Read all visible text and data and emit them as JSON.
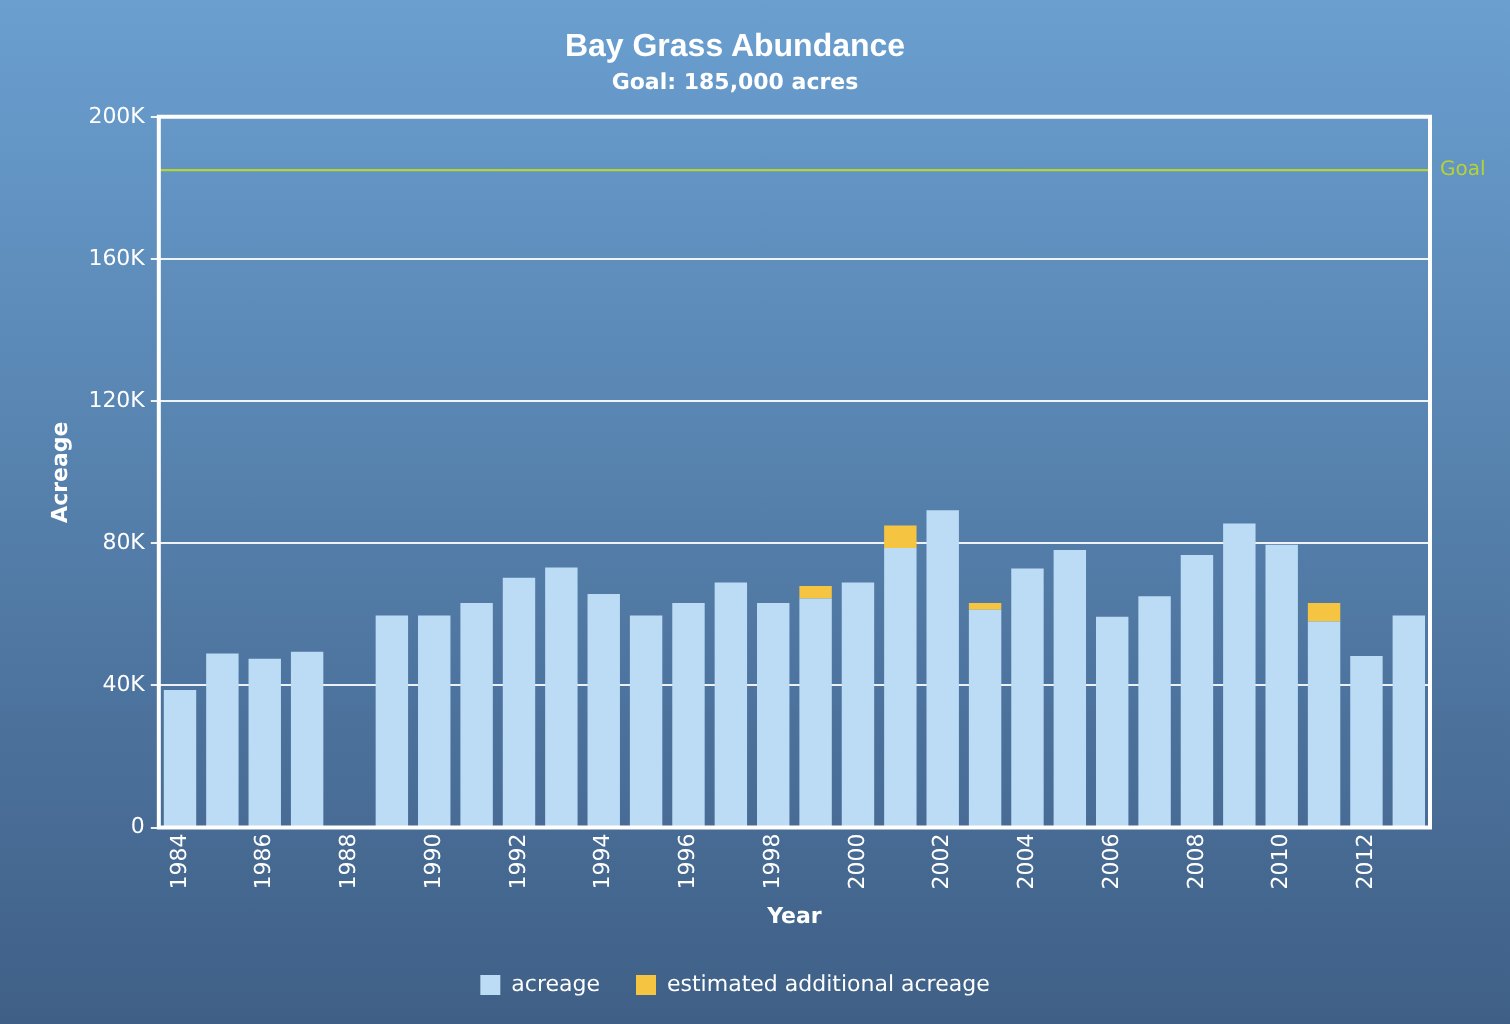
{
  "chart_data": {
    "type": "bar",
    "title": "Bay Grass Abundance",
    "subtitle": "Goal: 185,000 acres",
    "xlabel": "Year",
    "ylabel": "Acreage",
    "categories": [
      "1984",
      null,
      "1986",
      null,
      "1988",
      null,
      "1990",
      null,
      "1992",
      null,
      "1994",
      null,
      "1996",
      null,
      "1998",
      null,
      "2000",
      null,
      "2002",
      null,
      "2004",
      null,
      "2006",
      null,
      "2008",
      null,
      "2010",
      null,
      "2012",
      null
    ],
    "stacked": true,
    "series": [
      {
        "name": "acreage",
        "color": "#bcdcf6",
        "values": [
          38700,
          49000,
          47500,
          49500,
          0,
          59700,
          59700,
          63200,
          70300,
          73200,
          65700,
          59700,
          63200,
          69000,
          63200,
          64500,
          69000,
          78700,
          89300,
          61300,
          72900,
          78100,
          59300,
          65100,
          76700,
          85600,
          79600,
          58000,
          48300,
          59700
        ]
      },
      {
        "name": "estimated additional acreage",
        "color": "#f5c542",
        "values": [
          null,
          null,
          null,
          null,
          null,
          null,
          null,
          null,
          null,
          null,
          null,
          null,
          null,
          null,
          null,
          3500,
          null,
          6300,
          null,
          1900,
          null,
          null,
          null,
          null,
          null,
          null,
          null,
          5200,
          null,
          null
        ]
      }
    ],
    "ylim": [
      0,
      200000
    ],
    "yticks": [
      {
        "value": 0,
        "label": "0"
      },
      {
        "value": 40000,
        "label": "40K"
      },
      {
        "value": 80000,
        "label": "80K"
      },
      {
        "value": 120000,
        "label": "120K"
      },
      {
        "value": 160000,
        "label": "160K"
      },
      {
        "value": 200000,
        "label": "200K"
      }
    ],
    "grid": "y",
    "legend": "bottom",
    "ref_lines": [
      {
        "axis": "y",
        "value": 185000,
        "label": "Goal",
        "color": "#b5d334"
      }
    ]
  }
}
